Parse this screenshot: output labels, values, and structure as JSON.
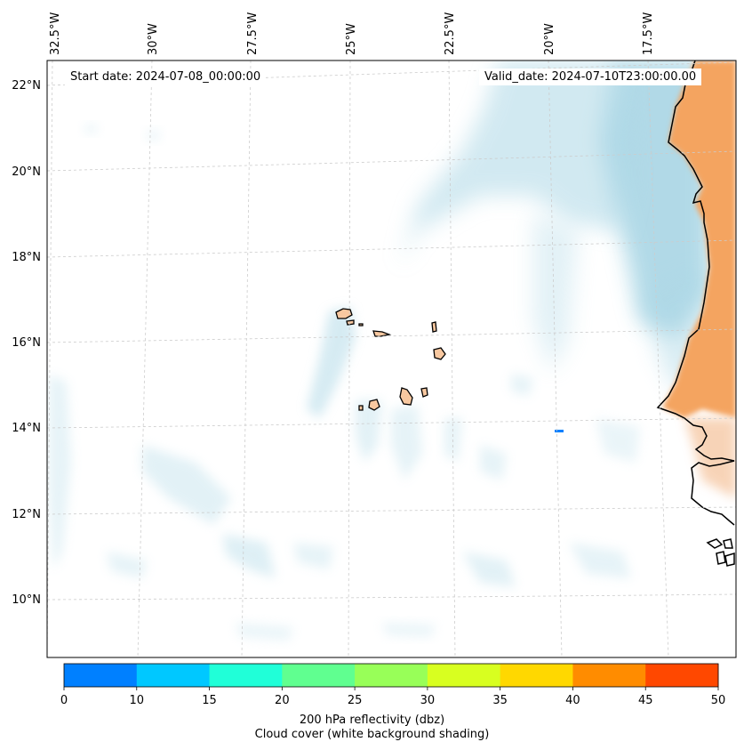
{
  "map": {
    "lon_labels": [
      "32.5°W",
      "30°W",
      "27.5°W",
      "25°W",
      "22.5°W",
      "20°W",
      "17.5°W"
    ],
    "lat_labels": [
      "22°N",
      "20°N",
      "18°N",
      "16°N",
      "14°N",
      "12°N",
      "10°N"
    ],
    "start_date": "Start date: 2024-07-08_00:00:00",
    "valid_date": "Valid_date: 2024-07-10T23:00:00.00",
    "colors": {
      "cloud": "#add8e6",
      "land": "#f4a460",
      "island": "#f8c8a0",
      "coast": "#000000",
      "grid": "#cccccc"
    }
  },
  "colorbar": {
    "ticks": [
      "0",
      "10",
      "15",
      "20",
      "25",
      "30",
      "35",
      "40",
      "45",
      "50"
    ],
    "colors": [
      "#0080ff",
      "#00c8ff",
      "#20ffd8",
      "#60ff90",
      "#98ff58",
      "#d8ff20",
      "#ffd800",
      "#ff8c00",
      "#ff4800"
    ],
    "label_line1": "200 hPa reflectivity (dbz)",
    "label_line2": "Cloud cover (white background shading)"
  }
}
